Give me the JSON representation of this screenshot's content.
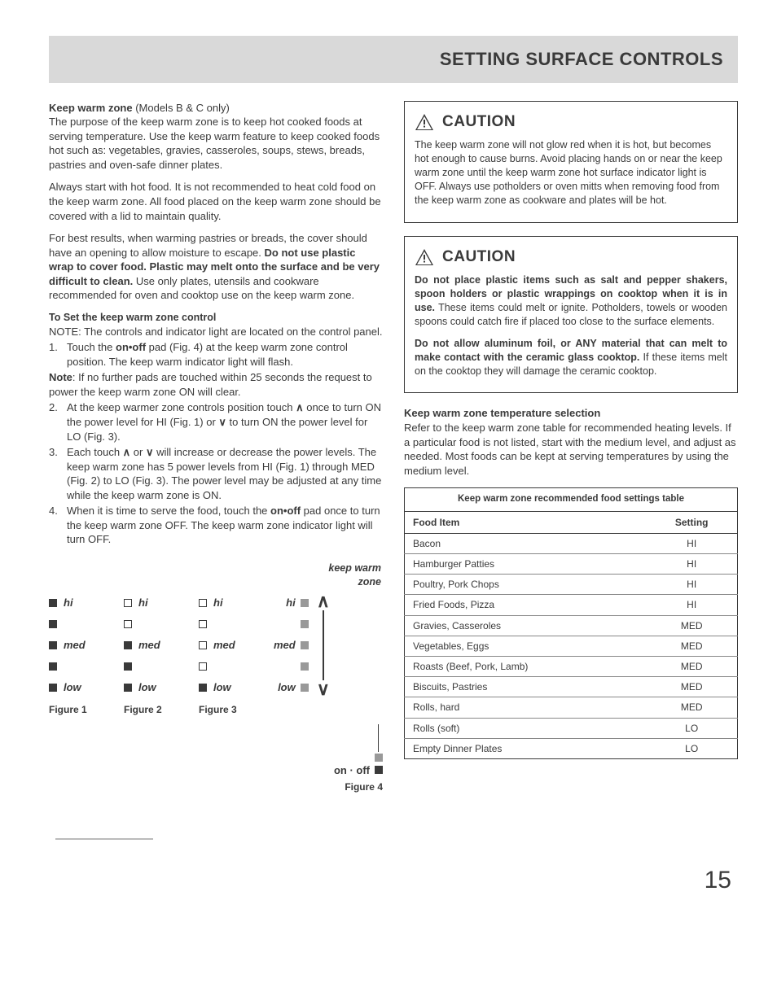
{
  "header": {
    "title": "SETTING SURFACE CONTROLS"
  },
  "left": {
    "h": "Keep warm zone",
    "hsub": " (Models B & C only)",
    "p1": "The purpose of the keep warm zone is to keep hot cooked foods at serving temperature. Use the keep warm feature to keep cooked foods hot such as: vegetables, gravies, casseroles, soups, stews, breads, pastries and oven-safe dinner plates.",
    "p2": "Always start with hot food. It is not recommended to heat cold food on the keep warm zone. All food placed on the keep warm zone should be covered with a lid to maintain quality.",
    "p3a": "For best results, when warming pastries or breads, the cover should have an opening to allow moisture to escape. ",
    "p3b": "Do not use plastic wrap to cover food. Plastic may melt onto the surface and be very difficult to clean.",
    "p3c": " Use only plates, utensils and cookware recommended for oven and cooktop use on the keep warm zone.",
    "sub": "To Set the keep warm zone control",
    "note": "NOTE: The controls and indicator light are located on the control panel.",
    "li1a": "Touch the ",
    "li1b": "on•off",
    "li1c": " pad (Fig. 4) at the keep warm zone control position. The keep warm indicator light will flash.",
    "noteb1": "Note",
    "noteb2": ": If no further pads are touched within 25 seconds the request to power the keep warm zone ON will clear.",
    "li2a": "At the keep warmer zone controls position touch ",
    "li2b": " once to turn ON the power level for HI (Fig. 1) or ",
    "li2c": " to turn ON the power level for LO (Fig. 3).",
    "li3a": "Each touch ",
    "li3b": " or ",
    "li3c": " will increase or decrease the power levels. The keep warm zone has 5 power levels from HI (Fig. 1) through MED (Fig. 2) to LO (Fig. 3). The power level may be adjusted at any time while the keep warm zone is ON.",
    "li4a": "When it is time to serve the food, touch the ",
    "li4b": "on•off",
    "li4c": " pad once to turn the keep warm zone OFF. The keep warm zone indicator light will turn OFF.",
    "kw_label1": "keep warm",
    "kw_label2": "zone",
    "levels": {
      "hi": "hi",
      "med": "med",
      "low": "low"
    },
    "fig1": "Figure 1",
    "fig2": "Figure 2",
    "fig3": "Figure 3",
    "fig4": "Figure 4",
    "onoff": "on · off"
  },
  "right": {
    "caution": "CAUTION",
    "c1": "The keep warm zone will not glow red when it is hot, but becomes hot enough to cause burns. Avoid placing hands on or near the keep warm zone until the keep warm zone hot surface indicator light is OFF. Always use potholders or oven mitts when removing food from the keep warm zone as cookware and plates will be hot.",
    "c2a": "Do not place plastic items such as salt and pepper shakers, spoon holders or plastic wrappings on cooktop when it is in use.",
    "c2b": " These items could melt or ignite. Potholders, towels or wooden spoons could catch fire if placed too close to the surface elements.",
    "c2c": "Do not allow aluminum foil, or ANY material that can melt to make contact with the ceramic glass cooktop.",
    "c2d": " If these items melt on the cooktop they will damage the ceramic cooktop.",
    "temp_h": "Keep warm zone temperature selection",
    "temp_p": "Refer to the keep warm zone table for recommended heating levels. If a particular food is not listed, start with the medium level, and adjust as needed. Most foods can be kept at serving temperatures by using the medium level.",
    "table": {
      "caption": "Keep warm zone recommended food settings table",
      "col1": "Food Item",
      "col2": "Setting",
      "rows": [
        [
          "Bacon",
          "HI"
        ],
        [
          "Hamburger Patties",
          "HI"
        ],
        [
          "Poultry, Pork Chops",
          "HI"
        ],
        [
          "Fried Foods, Pizza",
          "HI"
        ],
        [
          "Gravies, Casseroles",
          "MED"
        ],
        [
          "Vegetables, Eggs",
          "MED"
        ],
        [
          "Roasts (Beef, Pork, Lamb)",
          "MED"
        ],
        [
          "Biscuits, Pastries",
          "MED"
        ],
        [
          "Rolls, hard",
          "MED"
        ],
        [
          "Rolls (soft)",
          "LO"
        ],
        [
          "Empty Dinner Plates",
          "LO"
        ]
      ]
    }
  },
  "page_number": "15",
  "colors": {
    "fg": "#3a3a3a",
    "bar": "#d9d9d9",
    "gray": "#999"
  }
}
